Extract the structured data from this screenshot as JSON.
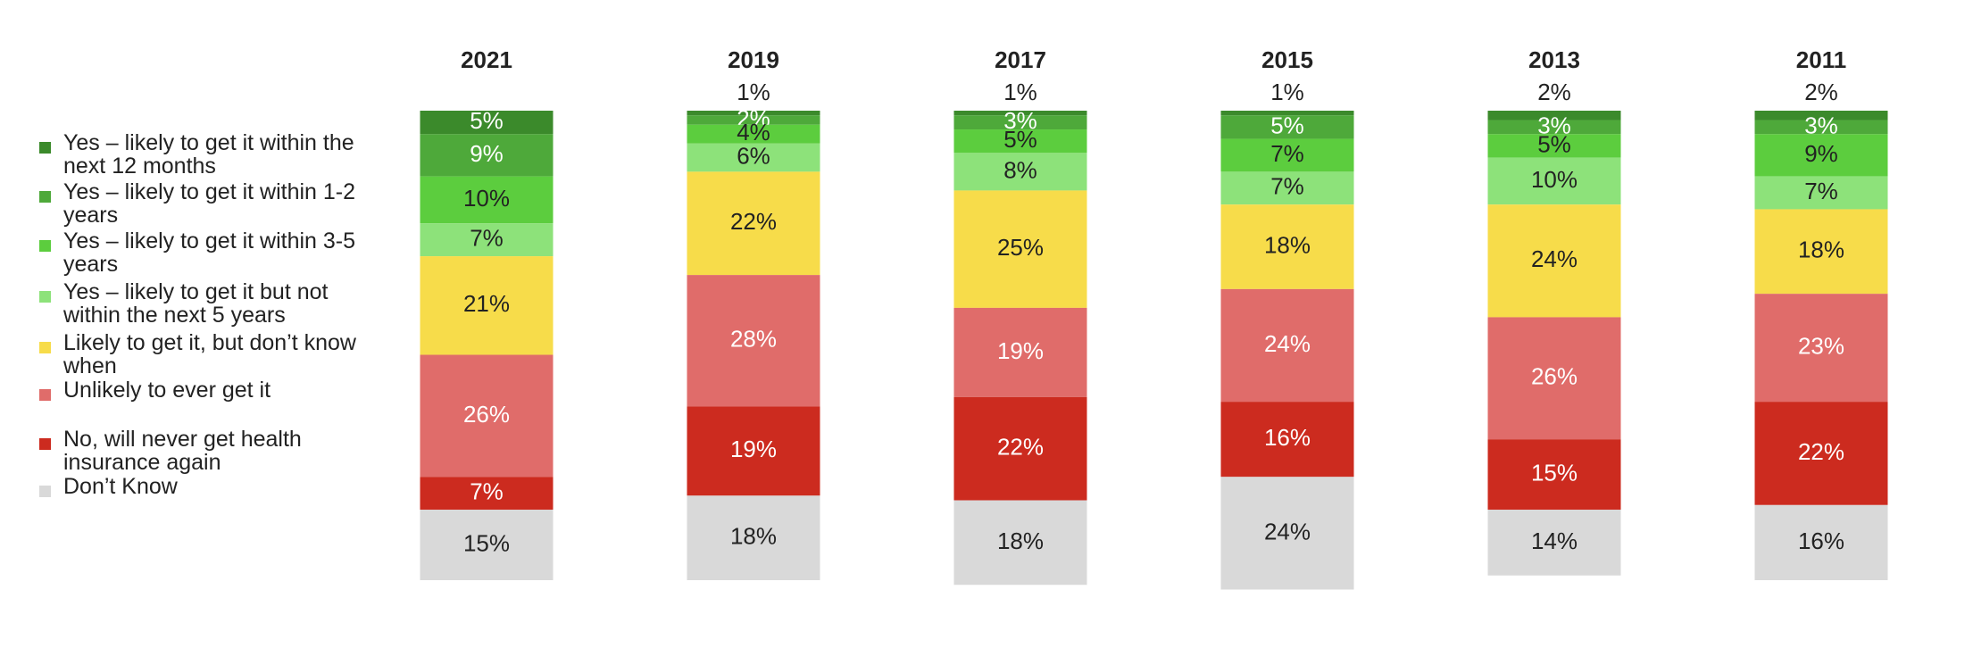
{
  "chart_data": {
    "type": "stacked-bar",
    "categories": [
      "2021",
      "2019",
      "2017",
      "2015",
      "2013",
      "2011"
    ],
    "series": [
      {
        "name": "Yes – likely to get it within the next 12 months",
        "color": "#3b8a2b",
        "values": [
          5,
          1,
          1,
          1,
          2,
          2
        ],
        "value_labels": [
          "5%",
          "1%",
          "1%",
          "1%",
          "2%",
          "2%"
        ]
      },
      {
        "name": "Yes – likely to get it within 1-2 years",
        "color": "#4ea93a",
        "values": [
          9,
          2,
          3,
          5,
          3,
          3
        ],
        "value_labels": [
          "9%",
          "2%",
          "3%",
          "5%",
          "3%",
          "3%"
        ]
      },
      {
        "name": "Yes – likely to get it within 3-5 years",
        "color": "#5ccd3e",
        "values": [
          10,
          4,
          5,
          7,
          5,
          9
        ],
        "value_labels": [
          "10%",
          "4%",
          "5%",
          "7%",
          "5%",
          "9%"
        ]
      },
      {
        "name": "Yes – likely to get it but not within the next 5 years",
        "color": "#8de27a",
        "values": [
          7,
          6,
          8,
          7,
          10,
          7
        ],
        "value_labels": [
          "7%",
          "6%",
          "8%",
          "7%",
          "10%",
          "7%"
        ]
      },
      {
        "name": "Likely to get it, but don’t know when",
        "color": "#f7dc4a",
        "values": [
          21,
          22,
          25,
          18,
          24,
          18
        ],
        "value_labels": [
          "21%",
          "22%",
          "25%",
          "18%",
          "24%",
          "18%"
        ]
      },
      {
        "name": "Unlikely to ever get it",
        "color": "#e06c6a",
        "values": [
          26,
          28,
          19,
          24,
          26,
          23
        ],
        "value_labels": [
          "26%",
          "28%",
          "19%",
          "24%",
          "26%",
          "23%"
        ]
      },
      {
        "name": "No, will never get health insurance again",
        "color": "#cc2b1f",
        "values": [
          7,
          19,
          22,
          16,
          15,
          22
        ],
        "value_labels": [
          "7%",
          "19%",
          "22%",
          "16%",
          "15%",
          "22%"
        ]
      },
      {
        "name": "Don’t Know",
        "color": "#d9d9d9",
        "values": [
          15,
          18,
          18,
          24,
          14,
          16
        ],
        "value_labels": [
          "15%",
          "18%",
          "18%",
          "24%",
          "14%",
          "16%"
        ]
      }
    ]
  }
}
